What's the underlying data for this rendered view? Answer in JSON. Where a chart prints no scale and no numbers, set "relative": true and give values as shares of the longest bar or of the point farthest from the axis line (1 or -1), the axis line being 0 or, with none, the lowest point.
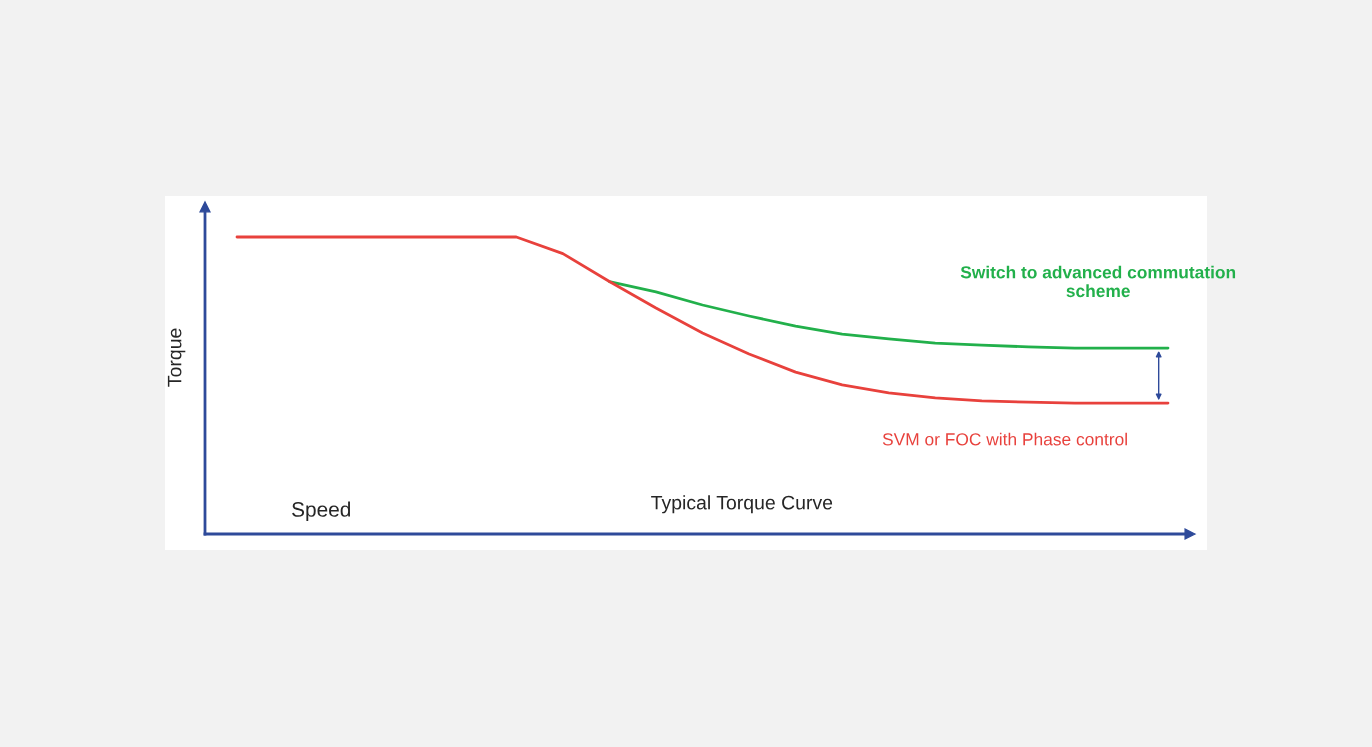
{
  "chart_data": {
    "type": "line",
    "relative": true,
    "title": "Typical Torque Curve",
    "xlabel": "Speed",
    "ylabel": "Torque",
    "categories": [
      null,
      null,
      null,
      null,
      null,
      null,
      null,
      null,
      null,
      null,
      null,
      null,
      null,
      null,
      null,
      null,
      null,
      null,
      null,
      null,
      null
    ],
    "series": [
      {
        "name": "Switch to advanced commutation scheme",
        "color": "#22b04b",
        "values": [
          null,
          null,
          null,
          null,
          null,
          null,
          null,
          null,
          0.85,
          0.815,
          0.771,
          0.734,
          0.7,
          0.673,
          0.657,
          0.643,
          0.636,
          0.63,
          0.626,
          0.626,
          0.626
        ]
      },
      {
        "name": "SVM or FOC with Phase control",
        "color": "#e8413c",
        "values": [
          1.0,
          1.0,
          1.0,
          1.0,
          1.0,
          1.0,
          1.0,
          0.944,
          0.85,
          0.761,
          0.677,
          0.606,
          0.545,
          0.502,
          0.475,
          0.458,
          0.448,
          0.444,
          0.441,
          0.441,
          0.441
        ]
      }
    ],
    "grid": false,
    "legend": false
  }
}
